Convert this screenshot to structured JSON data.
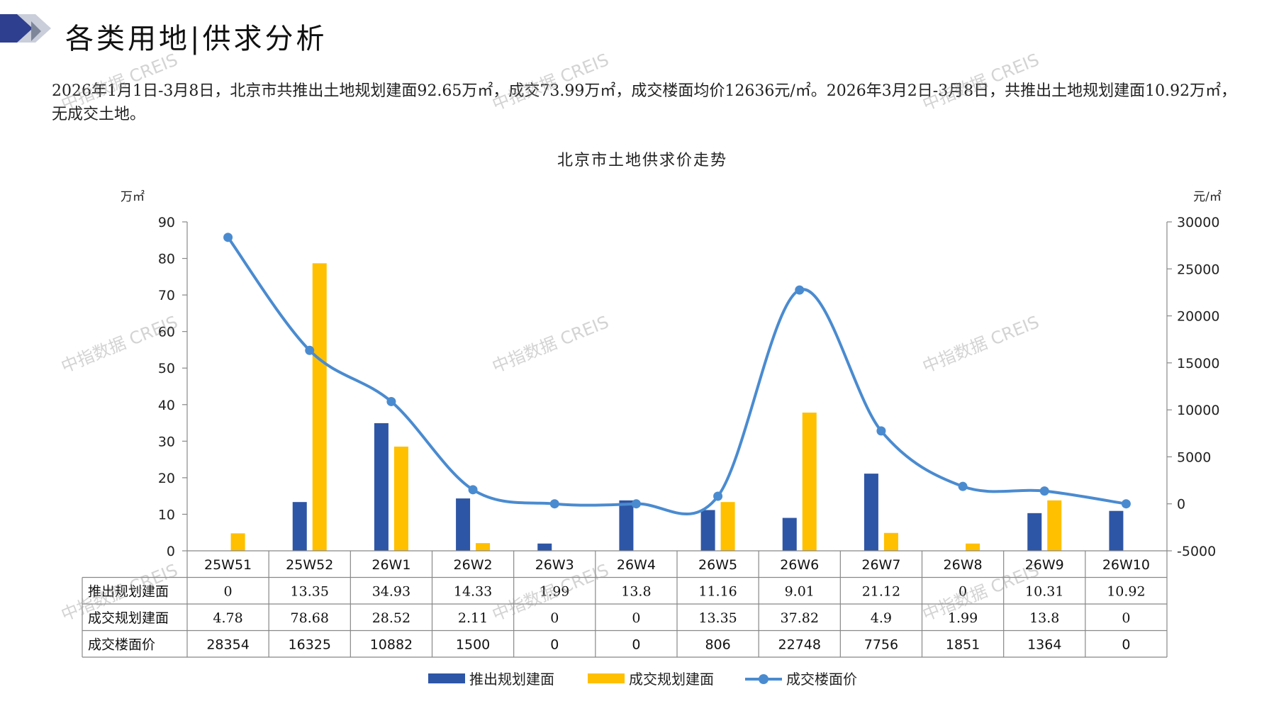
{
  "page": {
    "title": "各类用地|供求分析",
    "summary": "2026年1月1日-3月8日，北京市共推出土地规划建面92.65万㎡，成交73.99万㎡，成交楼面均价12636元/㎡。2026年3月2日-3月8日，共推出土地规划建面10.92万㎡，无成交土地。",
    "watermark": "中指数据 CREIS"
  },
  "colors": {
    "supply": "#2E56A6",
    "deal": "#FFC000",
    "price": "#4A8BD0",
    "logo_dark": "#2F3F8F",
    "logo_light": "#9DA6B8"
  },
  "chart_data": {
    "type": "bar",
    "title": "北京市土地供求价走势",
    "y_left_unit": "万㎡",
    "y_right_unit": "元/㎡",
    "y_left_range": [
      0,
      90
    ],
    "y_left_ticks": [
      "0",
      "10",
      "20",
      "30",
      "40",
      "50",
      "60",
      "70",
      "80",
      "90"
    ],
    "y_right_range": [
      -5000,
      30000
    ],
    "y_right_ticks": [
      "-5000",
      "0",
      "5000",
      "10000",
      "15000",
      "20000",
      "25000",
      "30000"
    ],
    "categories": [
      "25W51",
      "25W52",
      "26W1",
      "26W2",
      "26W3",
      "26W4",
      "26W5",
      "26W6",
      "26W7",
      "26W8",
      "26W9",
      "26W10"
    ],
    "series": [
      {
        "name": "推出规划建面",
        "type": "bar",
        "axis": "left",
        "color": "#2E56A6",
        "values": [
          0,
          13.35,
          34.93,
          14.33,
          1.99,
          13.8,
          11.16,
          9.01,
          21.12,
          0,
          10.31,
          10.92
        ],
        "labels": [
          "0",
          "13.35",
          "34.93",
          "14.33",
          "1.99",
          "13.8",
          "11.16",
          "9.01",
          "21.12",
          "0",
          "10.31",
          "10.92"
        ]
      },
      {
        "name": "成交规划建面",
        "type": "bar",
        "axis": "left",
        "color": "#FFC000",
        "values": [
          4.78,
          78.68,
          28.52,
          2.11,
          0,
          0,
          13.35,
          37.82,
          4.9,
          1.99,
          13.8,
          0
        ],
        "labels": [
          "4.78",
          "78.68",
          "28.52",
          "2.11",
          "0",
          "0",
          "13.35",
          "37.82",
          "4.9",
          "1.99",
          "13.8",
          "0"
        ]
      },
      {
        "name": "成交楼面价",
        "type": "line",
        "axis": "right",
        "color": "#4A8BD0",
        "values": [
          28354,
          16325,
          10882,
          1500,
          0,
          0,
          806,
          22748,
          7756,
          1851,
          1364,
          0
        ],
        "labels": [
          "28354",
          "16325",
          "10882",
          "1500",
          "0",
          "0",
          "806",
          "22748",
          "7756",
          "1851",
          "1364",
          "0"
        ]
      }
    ],
    "legend_position": "bottom",
    "data_table": true
  }
}
